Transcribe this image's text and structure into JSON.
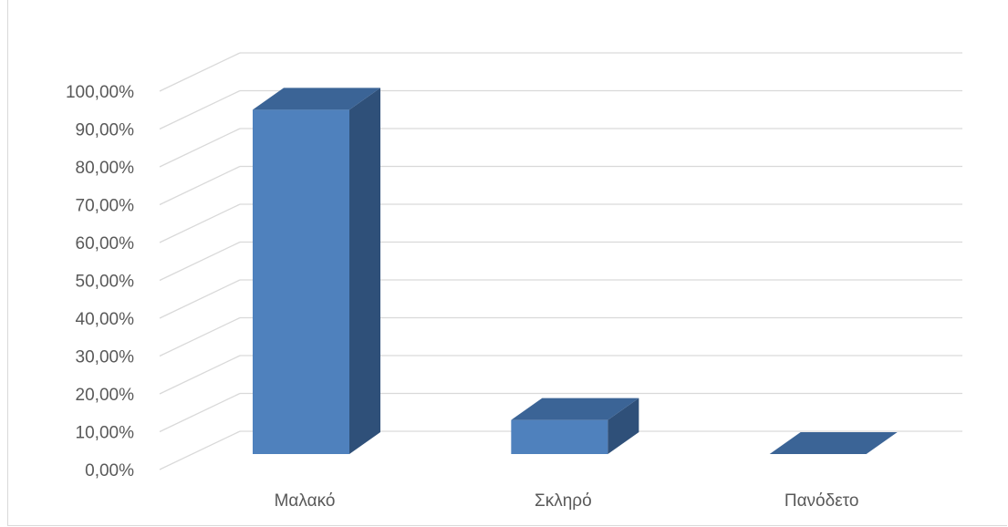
{
  "chart_data": {
    "type": "bar",
    "style": "3d-column",
    "title": "",
    "categories": [
      "Μαλακό",
      "Σκληρό",
      "Πανόδετο"
    ],
    "values": [
      0.91,
      0.09,
      0.0
    ],
    "ylim": [
      0,
      1.0
    ],
    "yticks": [
      "0,00%",
      "10,00%",
      "20,00%",
      "30,00%",
      "40,00%",
      "50,00%",
      "60,00%",
      "70,00%",
      "80,00%",
      "90,00%",
      "100,00%"
    ],
    "xlabel": "",
    "ylabel": "",
    "grid": true,
    "legend": "none",
    "colors": {
      "front": "#4f81bd",
      "side": "#2f5079",
      "top": "#3b6496",
      "grid": "#d9d9d9",
      "text": "#595959"
    }
  }
}
